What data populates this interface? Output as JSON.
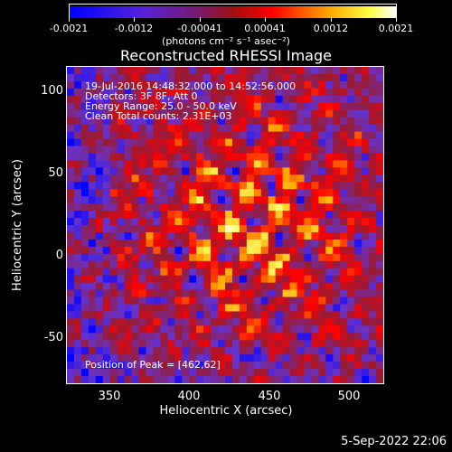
{
  "colorbar": {
    "ticks": [
      "-0.0021",
      "-0.0012",
      "-0.00041",
      "0.00041",
      "0.0012",
      "0.0021"
    ],
    "units": "(photons cm⁻² s⁻¹ asec⁻²)"
  },
  "title": "Reconstructed RHESSI Image",
  "info": {
    "line1": "19-Jul-2016 14:48:32.000 to 14:52:56.000",
    "line2": "Detectors: 3F 8F, Att 0",
    "line3": "Energy Range: 25.0 - 50.0 keV",
    "line4": "Clean     Total counts: 2.31E+03",
    "peak": "Position of Peak = [462,62]"
  },
  "axes": {
    "xlabel": "Heliocentric X (arcsec)",
    "ylabel": "Heliocentric Y (arcsec)",
    "xticks": [
      "350",
      "400",
      "450",
      "500"
    ],
    "yticks": [
      "100",
      "50",
      "0",
      "-50"
    ]
  },
  "date": "5-Sep-2022 22:06",
  "colors": {
    "colormap": [
      "#0000ff",
      "#6633cc",
      "#991a33",
      "#ff0000",
      "#ffaa00",
      "#ffff66",
      "#ffffff"
    ]
  }
}
